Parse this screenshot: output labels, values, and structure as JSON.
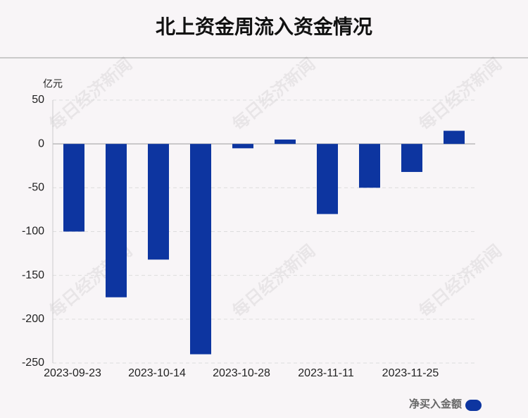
{
  "chart_data": {
    "type": "bar",
    "title": "北上资金周流入资金情况",
    "y_unit": "亿元",
    "watermark": "每日经济新闻",
    "categories": [
      "2023-09-23",
      null,
      "2023-10-14",
      null,
      "2023-10-28",
      null,
      "2023-11-11",
      null,
      "2023-11-25",
      null
    ],
    "series": [
      {
        "name": "净买入金额",
        "color": "#0d35a0",
        "values": [
          -100,
          -175,
          -132,
          -240,
          -5,
          5,
          -80,
          -50,
          -32,
          15
        ]
      }
    ],
    "ylim": [
      -250,
      50
    ],
    "yticks": [
      -250,
      -200,
      -150,
      -100,
      -50,
      0,
      50
    ],
    "grid": true
  }
}
